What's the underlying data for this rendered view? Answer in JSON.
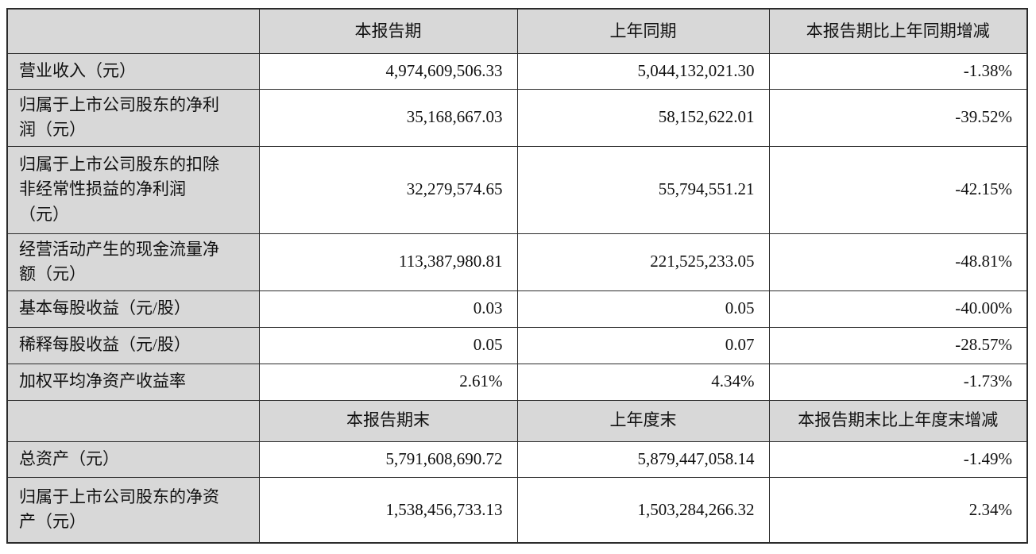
{
  "colors": {
    "page_background": "#ffffff",
    "header_fill": "#d8d8d8",
    "label_fill": "#d8d8d8",
    "border": "#2b2b2b",
    "text": "#111111"
  },
  "table": {
    "sections": [
      {
        "headers": {
          "corner": "",
          "current": "本报告期",
          "prior": "上年同期",
          "change": "本报告期比上年同期增减"
        },
        "rows": [
          {
            "label": "营业收入（元）",
            "current": "4,974,609,506.33",
            "prior": "5,044,132,021.30",
            "change": "-1.38%"
          },
          {
            "label": "归属于上市公司股东的净利润（元）",
            "current": "35,168,667.03",
            "prior": "58,152,622.01",
            "change": "-39.52%"
          },
          {
            "label": "归属于上市公司股东的扣除非经常性损益的净利润（元）",
            "current": "32,279,574.65",
            "prior": "55,794,551.21",
            "change": "-42.15%"
          },
          {
            "label": "经营活动产生的现金流量净额（元）",
            "current": "113,387,980.81",
            "prior": "221,525,233.05",
            "change": "-48.81%"
          },
          {
            "label": "基本每股收益（元/股）",
            "current": "0.03",
            "prior": "0.05",
            "change": "-40.00%"
          },
          {
            "label": "稀释每股收益（元/股）",
            "current": "0.05",
            "prior": "0.07",
            "change": "-28.57%"
          },
          {
            "label": "加权平均净资产收益率",
            "current": "2.61%",
            "prior": "4.34%",
            "change": "-1.73%"
          }
        ]
      },
      {
        "headers": {
          "corner": "",
          "current": "本报告期末",
          "prior": "上年度末",
          "change": "本报告期末比上年度末增减"
        },
        "rows": [
          {
            "label": "总资产（元）",
            "current": "5,791,608,690.72",
            "prior": "5,879,447,058.14",
            "change": "-1.49%"
          },
          {
            "label": "归属于上市公司股东的净资产（元）",
            "current": "1,538,456,733.13",
            "prior": "1,503,284,266.32",
            "change": "2.34%"
          }
        ]
      }
    ]
  }
}
